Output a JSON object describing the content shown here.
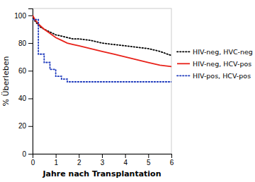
{
  "chart_data": {
    "type": "line",
    "x_label": "Jahre nach Transplantation",
    "y_label": "% Überleben",
    "xlim": [
      0,
      6
    ],
    "ylim": [
      0,
      105
    ],
    "xticks": [
      0,
      1,
      2,
      3,
      4,
      5,
      6
    ],
    "yticks": [
      0,
      20,
      40,
      60,
      80,
      100
    ],
    "grid": false,
    "legend": "right",
    "series": [
      {
        "name": "HIV-neg, HVC-neg",
        "color": "#000000",
        "line_style": "dotted",
        "x": [
          0,
          0.1,
          0.2,
          0.3,
          0.5,
          0.75,
          1.0,
          1.25,
          1.5,
          1.75,
          2.0,
          2.5,
          3.0,
          3.5,
          4.0,
          4.5,
          5.0,
          5.5,
          6.0
        ],
        "values": [
          100,
          96,
          94,
          92,
          90,
          88,
          86,
          85,
          84,
          83,
          83,
          82,
          80,
          79,
          78,
          77,
          76,
          74,
          71
        ]
      },
      {
        "name": "HIV-neg, HCV-pos",
        "color": "#e8221a",
        "line_style": "solid",
        "x": [
          0,
          0.1,
          0.2,
          0.3,
          0.5,
          0.75,
          1.0,
          1.25,
          1.5,
          1.75,
          2.0,
          2.5,
          3.0,
          3.5,
          4.0,
          4.5,
          5.0,
          5.5,
          6.0
        ],
        "values": [
          100,
          97,
          95,
          93,
          90,
          87,
          84,
          82,
          80,
          79,
          78,
          76,
          74,
          72,
          70,
          68,
          66,
          64,
          63
        ]
      },
      {
        "name": "HIV-pos, HCV-pos",
        "color": "#1f3bbd",
        "line_style": "dotted",
        "x": [
          0,
          0.25,
          0.25,
          0.5,
          0.5,
          0.75,
          0.75,
          1.0,
          1.0,
          1.25,
          1.25,
          1.5,
          1.5,
          2.0,
          2.0,
          6.0
        ],
        "values": [
          97,
          97,
          72,
          72,
          66,
          66,
          61,
          61,
          56,
          56,
          54,
          54,
          52,
          52,
          52,
          52
        ]
      }
    ]
  }
}
